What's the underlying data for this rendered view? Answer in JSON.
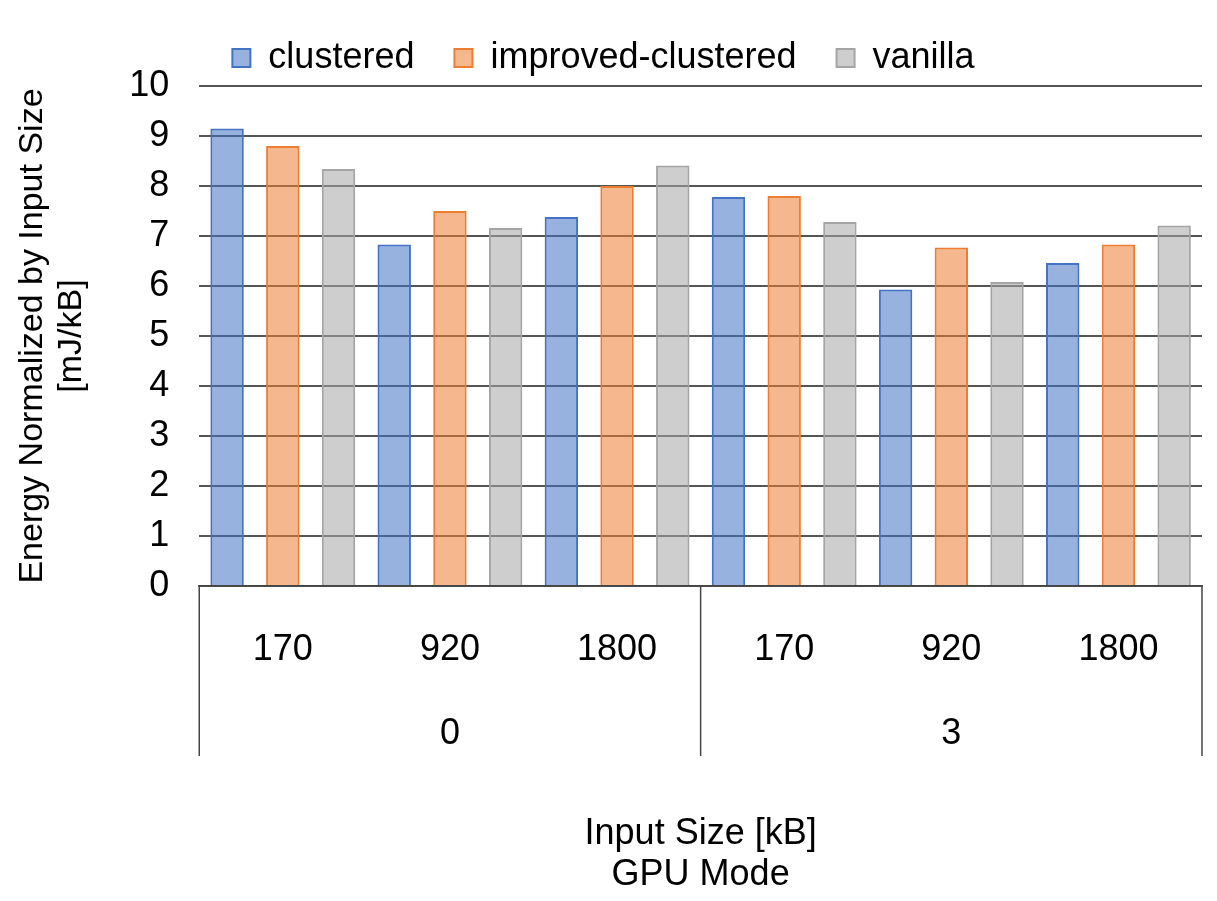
{
  "chart_data": {
    "type": "bar",
    "xlabel": "Input Size [kB]\nGPU Mode",
    "ylabel": "Energy Normalized by Input Size\n[mJ/kB]",
    "categories": [
      "170",
      "920",
      "1800",
      "170",
      "920",
      "1800"
    ],
    "annotations": [
      "0",
      "3"
    ],
    "series": [
      {
        "name": "clustered",
        "color": "#4472c4",
        "values": [
          9.15,
          6.83,
          7.38,
          7.78,
          5.93,
          6.46
        ]
      },
      {
        "name": "improved-clustered",
        "color": "#ed7d31",
        "values": [
          8.8,
          7.5,
          8.0,
          7.8,
          6.77,
          6.83
        ]
      },
      {
        "name": "vanilla",
        "color": "#a5a5a5",
        "values": [
          8.34,
          7.16,
          8.41,
          7.28,
          6.08,
          7.21
        ]
      }
    ],
    "ylim": [
      0,
      10
    ],
    "yticks": [
      0,
      1,
      2,
      3,
      4,
      5,
      6,
      7,
      8,
      9,
      10
    ],
    "grid": "y",
    "legend": "top"
  }
}
